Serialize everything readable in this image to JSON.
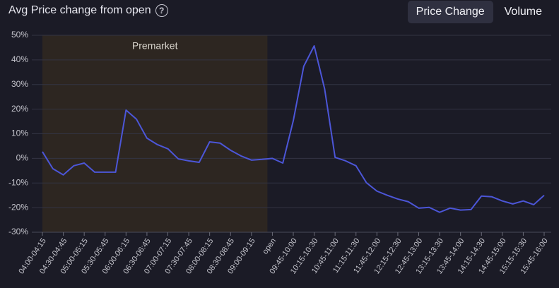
{
  "header": {
    "help": "?"
  },
  "tabs": [
    "Price Change",
    "Volume"
  ],
  "chart_data": {
    "type": "line",
    "title": "Avg Price change from open",
    "annotation": "Premarket",
    "categories": [
      "04:00-04:15",
      null,
      "04:30-04:45",
      null,
      "05:00-05:15",
      null,
      "05:30-05:45",
      null,
      "06:00-06:15",
      null,
      "06:30-06:45",
      null,
      "07:00-07:15",
      null,
      "07:30-07:45",
      null,
      "08:00-08:15",
      null,
      "08:30-08:45",
      null,
      "09:00-09:15",
      null,
      "open",
      null,
      "09:45-10:00",
      null,
      "10:15-10:30",
      null,
      "10:45-11:00",
      null,
      "11:15-11:30",
      null,
      "11:45-12:00",
      null,
      "12:15-12:30",
      null,
      "12:45-13:00",
      null,
      "13:15-13:30",
      null,
      "13:45-14:00",
      null,
      "14:15-14:30",
      null,
      "14:45-15:00",
      null,
      "15:15-15:30",
      null,
      "15:45-16:00"
    ],
    "values": [
      2.7,
      -4.2,
      -6.7,
      -3,
      -1.9,
      -5.6,
      -5.6,
      -5.6,
      19.6,
      15.9,
      8.2,
      5.6,
      3.9,
      -0.2,
      -1,
      -1.6,
      6.7,
      6.2,
      3.3,
      1,
      -0.7,
      -0.4,
      0,
      -1.9,
      15.3,
      37.4,
      45.7,
      28.2,
      0.4,
      -1,
      -3,
      -9.9,
      -13.3,
      -15,
      -16.5,
      -17.6,
      -20.2,
      -19.9,
      -21.9,
      -20.2,
      -21,
      -20.8,
      -15.3,
      -15.6,
      -17.3,
      -18.5,
      -17.3,
      -18.8,
      -15
    ],
    "color": "#4c56d8",
    "ylim": [
      -30,
      50
    ],
    "yticks": [
      {
        "value": -30,
        "label": "-30%"
      },
      {
        "value": -20,
        "label": "-20%"
      },
      {
        "value": -10,
        "label": "-10%"
      },
      {
        "value": 0,
        "label": "0%"
      },
      {
        "value": 10,
        "label": "10%"
      },
      {
        "value": 20,
        "label": "20%"
      },
      {
        "value": 30,
        "label": "30%"
      },
      {
        "value": 40,
        "label": "40%"
      },
      {
        "value": 50,
        "label": "50%"
      }
    ],
    "grid": true
  }
}
